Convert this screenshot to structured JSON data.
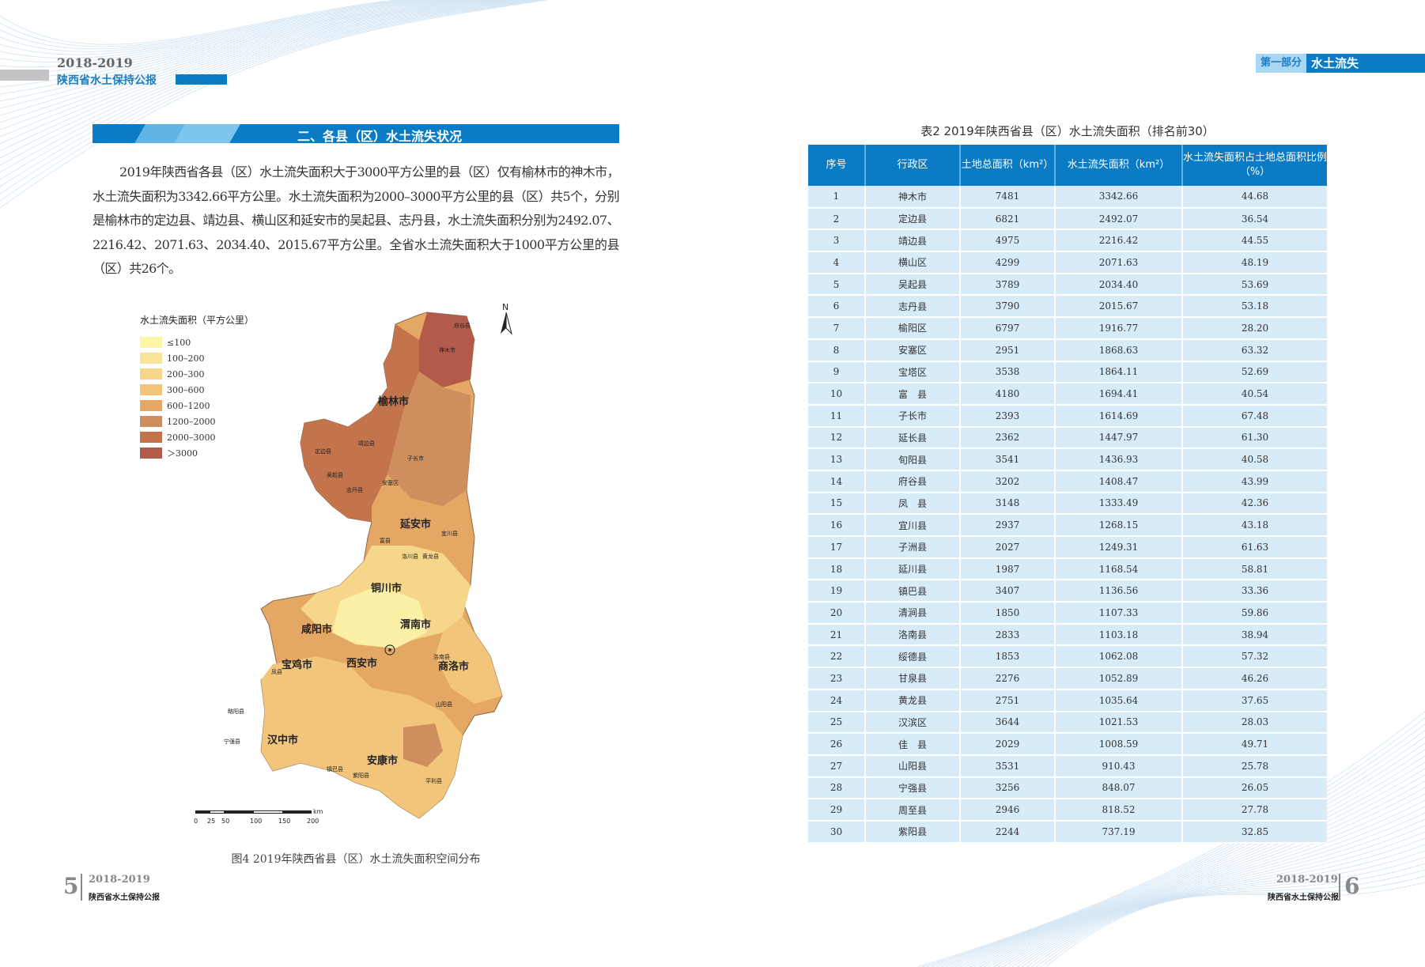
{
  "header_left": {
    "year": "2018-2019",
    "subtitle": "陕西省水土保持公报"
  },
  "header_right": {
    "part": "第一部分",
    "section": "水土流失"
  },
  "section": {
    "title": "二、各县（区）水土流失状况"
  },
  "paragraph": "2019年陕西省各县（区）水土流失面积大于3000平方公里的县（区）仅有榆林市的神木市，水土流失面积为3342.66平方公里。水土流失面积为2000–3000平方公里的县（区）共5个，分别是榆林市的定边县、靖边县、横山区和延安市的吴起县、志丹县，水土流失面积分别为2492.07、2216.42、2071.63、2034.40、2015.67平方公里。全省水土流失面积大于1000平方公里的县（区）共26个。",
  "map": {
    "legend_title": "水土流失面积（平方公里）",
    "legend": [
      {
        "label": "≤100",
        "color": "#fbf6a6"
      },
      {
        "label": "100–200",
        "color": "#f8e39a"
      },
      {
        "label": "200–300",
        "color": "#f6d68a"
      },
      {
        "label": "300–600",
        "color": "#f2c57a"
      },
      {
        "label": "600–1200",
        "color": "#e4a764"
      },
      {
        "label": "1200–2000",
        "color": "#cf8e5e"
      },
      {
        "label": "2000–3000",
        "color": "#c4744d"
      },
      {
        "label": "＞3000",
        "color": "#b35a4a"
      }
    ],
    "north": "N",
    "cities": [
      "榆林市",
      "延安市",
      "铜川市",
      "咸阳市",
      "渭南市",
      "宝鸡市",
      "西安市",
      "商洛市",
      "汉中市",
      "安康市"
    ],
    "counties": [
      "府谷县",
      "神木市",
      "定边县",
      "靖边县",
      "吴起县",
      "志丹县",
      "安塞区",
      "子长市",
      "宜川县",
      "富县",
      "洛川县",
      "黄龙县",
      "凤县",
      "略阳县",
      "宁强县",
      "镇巴县",
      "紫阳县",
      "山阳县",
      "洛南县",
      "平利县"
    ],
    "scale_ticks": [
      "0",
      "25",
      "50",
      "100",
      "150",
      "200"
    ],
    "scale_unit": "km",
    "caption": "图4 2019年陕西省县（区）水土流失面积空间分布"
  },
  "table": {
    "caption": "表2 2019年陕西省县（区）水土流失面积（排名前30）",
    "headers": [
      "序号",
      "行政区",
      "土地总面积（km²）",
      "水土流失面积（km²）",
      "水土流失面积占土地总面积比例（%）"
    ],
    "rows": [
      [
        "1",
        "神木市",
        "7481",
        "3342.66",
        "44.68"
      ],
      [
        "2",
        "定边县",
        "6821",
        "2492.07",
        "36.54"
      ],
      [
        "3",
        "靖边县",
        "4975",
        "2216.42",
        "44.55"
      ],
      [
        "4",
        "横山区",
        "4299",
        "2071.63",
        "48.19"
      ],
      [
        "5",
        "吴起县",
        "3789",
        "2034.40",
        "53.69"
      ],
      [
        "6",
        "志丹县",
        "3790",
        "2015.67",
        "53.18"
      ],
      [
        "7",
        "榆阳区",
        "6797",
        "1916.77",
        "28.20"
      ],
      [
        "8",
        "安塞区",
        "2951",
        "1868.63",
        "63.32"
      ],
      [
        "9",
        "宝塔区",
        "3538",
        "1864.11",
        "52.69"
      ],
      [
        "10",
        "富　县",
        "4180",
        "1694.41",
        "40.54"
      ],
      [
        "11",
        "子长市",
        "2393",
        "1614.69",
        "67.48"
      ],
      [
        "12",
        "延长县",
        "2362",
        "1447.97",
        "61.30"
      ],
      [
        "13",
        "旬阳县",
        "3541",
        "1436.93",
        "40.58"
      ],
      [
        "14",
        "府谷县",
        "3202",
        "1408.47",
        "43.99"
      ],
      [
        "15",
        "凤　县",
        "3148",
        "1333.49",
        "42.36"
      ],
      [
        "16",
        "宜川县",
        "2937",
        "1268.15",
        "43.18"
      ],
      [
        "17",
        "子洲县",
        "2027",
        "1249.31",
        "61.63"
      ],
      [
        "18",
        "延川县",
        "1987",
        "1168.54",
        "58.81"
      ],
      [
        "19",
        "镇巴县",
        "3407",
        "1136.56",
        "33.36"
      ],
      [
        "20",
        "清涧县",
        "1850",
        "1107.33",
        "59.86"
      ],
      [
        "21",
        "洛南县",
        "2833",
        "1103.18",
        "38.94"
      ],
      [
        "22",
        "绥德县",
        "1853",
        "1062.08",
        "57.32"
      ],
      [
        "23",
        "甘泉县",
        "2276",
        "1052.89",
        "46.26"
      ],
      [
        "24",
        "黄龙县",
        "2751",
        "1035.64",
        "37.65"
      ],
      [
        "25",
        "汉滨区",
        "3644",
        "1021.53",
        "28.03"
      ],
      [
        "26",
        "佳　县",
        "2029",
        "1008.59",
        "49.71"
      ],
      [
        "27",
        "山阳县",
        "3531",
        "910.43",
        "25.78"
      ],
      [
        "28",
        "宁强县",
        "3256",
        "848.07",
        "26.05"
      ],
      [
        "29",
        "周至县",
        "2946",
        "818.52",
        "27.78"
      ],
      [
        "30",
        "紫阳县",
        "2244",
        "737.19",
        "32.85"
      ]
    ]
  },
  "footer_left": {
    "page": "5",
    "year": "2018-2019",
    "subtitle": "陕西省水土保持公报"
  },
  "footer_right": {
    "page": "6",
    "year": "2018-2019",
    "subtitle": "陕西省水土保持公报"
  },
  "colors": {
    "brand_blue": "#0a7bc4",
    "light_blue": "#a8d6f3",
    "table_row": "#d7ebf9"
  }
}
